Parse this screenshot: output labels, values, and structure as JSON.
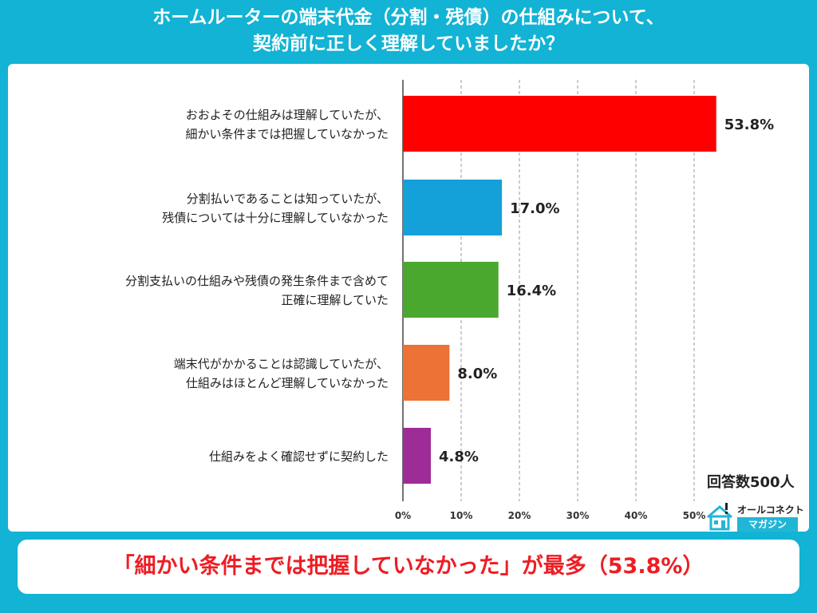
{
  "title_lines": [
    "ホームルーターの端末代金（分割・残債）の仕組みについて、",
    "契約前に正しく理解していましたか？"
  ],
  "sample_size": "回答数500人",
  "brand": {
    "top": "オールコネクト",
    "bottom": "マガジン",
    "icon": "house-logo-icon"
  },
  "banner": "「細かい条件までは把握していなかった」が最多（53.8%）",
  "colors": {
    "background": "#12b3d4",
    "banner_text": "#ee1d23",
    "grid": "#9a9a9a"
  },
  "chart_data": {
    "type": "bar",
    "orientation": "horizontal",
    "categories": [
      [
        "おおよその仕組みは理解していたが、",
        "細かい条件までは把握していなかった"
      ],
      [
        "分割払いであることは知っていたが、",
        "残債については十分に理解していなかった"
      ],
      [
        "分割支払いの仕組みや残債の発生条件まで含めて",
        "正確に理解していた"
      ],
      [
        "端末代がかかることは認識していたが、",
        "仕組みはほとんど理解していなかった"
      ],
      [
        "仕組みをよく確認せずに契約した"
      ]
    ],
    "values": [
      53.8,
      17.0,
      16.4,
      8.0,
      4.8
    ],
    "value_labels": [
      "53.8%",
      "17.0%",
      "16.4%",
      "8.0%",
      "4.8%"
    ],
    "bar_colors": [
      "#ff0000",
      "#14a0d8",
      "#4aa82e",
      "#ec7235",
      "#9e2c96"
    ],
    "xlim": [
      0,
      50
    ],
    "xticks": [
      "0%",
      "10%",
      "20%",
      "30%",
      "40%",
      "50%"
    ],
    "grid": true
  }
}
